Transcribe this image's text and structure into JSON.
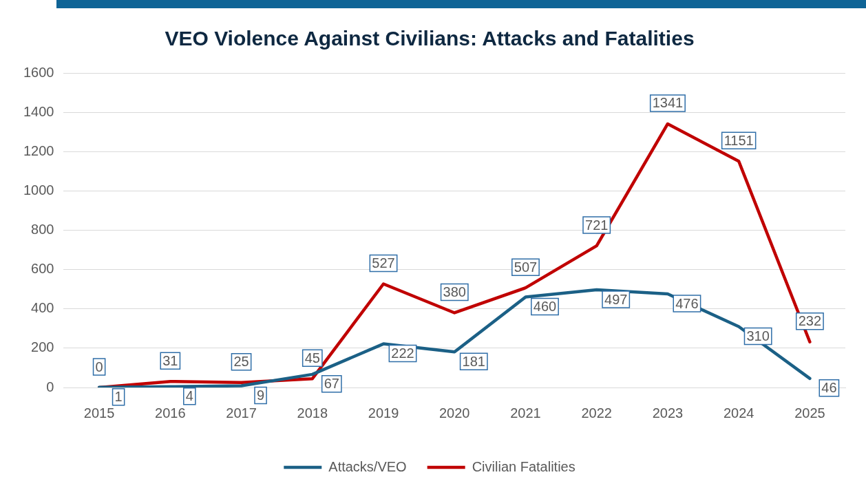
{
  "chart_data": {
    "type": "line",
    "title": "VEO Violence Against Civilians: Attacks and Fatalities",
    "categories": [
      "2015",
      "2016",
      "2017",
      "2018",
      "2019",
      "2020",
      "2021",
      "2022",
      "2023",
      "2024",
      "2025"
    ],
    "series": [
      {
        "name": "Attacks/VEO",
        "color": "#1b6086",
        "values": [
          1,
          4,
          9,
          67,
          222,
          181,
          460,
          497,
          476,
          310,
          46
        ]
      },
      {
        "name": "Civilian Fatalities",
        "color": "#c00000",
        "values": [
          0,
          31,
          25,
          45,
          527,
          380,
          507,
          721,
          1341,
          1151,
          232
        ]
      }
    ],
    "ylim": [
      0,
      1600
    ],
    "yticks": [
      0,
      200,
      400,
      600,
      800,
      1000,
      1200,
      1400,
      1600
    ],
    "grid": "y",
    "legend": "bottom",
    "marker": "none",
    "line_style": "solid",
    "data_labels": true
  }
}
